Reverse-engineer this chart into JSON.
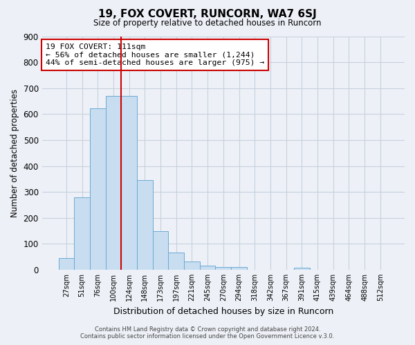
{
  "title": "19, FOX COVERT, RUNCORN, WA7 6SJ",
  "subtitle": "Size of property relative to detached houses in Runcorn",
  "xlabel": "Distribution of detached houses by size in Runcorn",
  "ylabel": "Number of detached properties",
  "bar_labels": [
    "27sqm",
    "51sqm",
    "76sqm",
    "100sqm",
    "124sqm",
    "148sqm",
    "173sqm",
    "197sqm",
    "221sqm",
    "245sqm",
    "270sqm",
    "294sqm",
    "318sqm",
    "342sqm",
    "367sqm",
    "391sqm",
    "415sqm",
    "439sqm",
    "464sqm",
    "488sqm",
    "512sqm"
  ],
  "bar_values": [
    45,
    280,
    622,
    670,
    670,
    345,
    148,
    65,
    32,
    15,
    10,
    10,
    0,
    0,
    0,
    8,
    0,
    0,
    0,
    0,
    0
  ],
  "bar_color": "#c9ddf0",
  "bar_edge_color": "#6aaad4",
  "vline_color": "#cc0000",
  "vline_x": 3.5,
  "ylim": [
    0,
    900
  ],
  "yticks": [
    0,
    100,
    200,
    300,
    400,
    500,
    600,
    700,
    800,
    900
  ],
  "grid_color": "#c8d0dc",
  "background_color": "#edf1f7",
  "annotation_title": "19 FOX COVERT: 111sqm",
  "annotation_line1": "← 56% of detached houses are smaller (1,244)",
  "annotation_line2": "44% of semi-detached houses are larger (975) →",
  "footer1": "Contains HM Land Registry data © Crown copyright and database right 2024.",
  "footer2": "Contains public sector information licensed under the Open Government Licence v.3.0."
}
